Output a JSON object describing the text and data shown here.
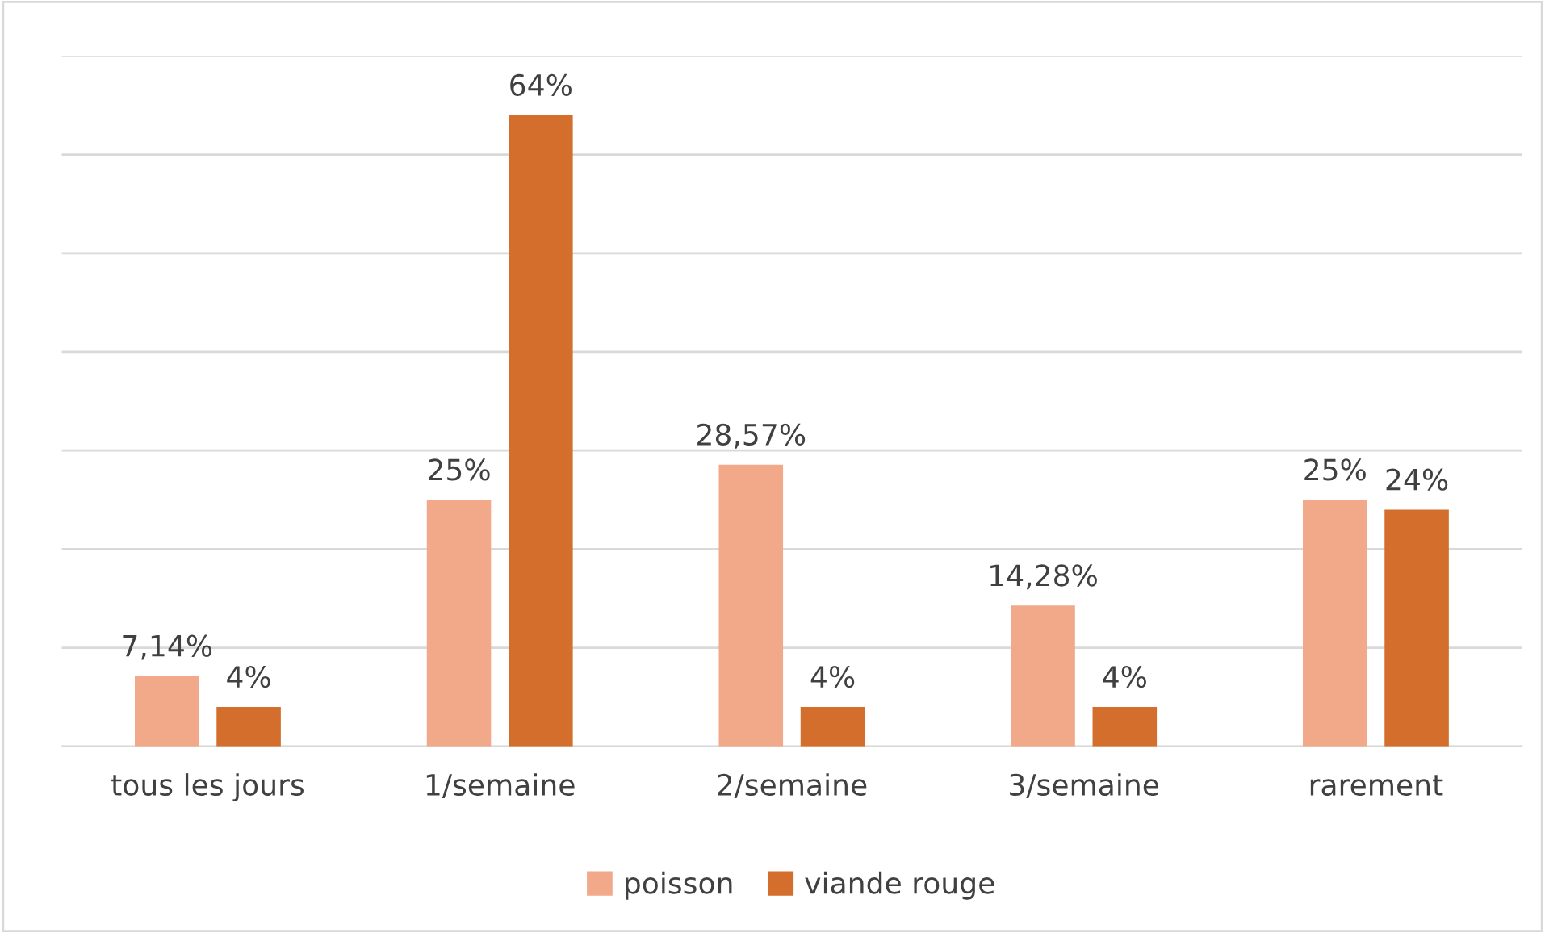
{
  "chart_data": {
    "type": "bar",
    "categories": [
      "tous les jours",
      "1/semaine",
      "2/semaine",
      "3/semaine",
      "rarement"
    ],
    "series": [
      {
        "name": "poisson",
        "color": "#f2a98a",
        "values": [
          7.14,
          25,
          28.57,
          14.28,
          25
        ],
        "value_labels": [
          "7,14%",
          "25%",
          "28,57%",
          "14,28%",
          "25%"
        ]
      },
      {
        "name": "viande rouge",
        "color": "#d46e2c",
        "values": [
          4,
          64,
          4,
          4,
          24
        ],
        "value_labels": [
          "4%",
          "64%",
          "4%",
          "4%",
          "24%"
        ]
      }
    ],
    "ylim": [
      0,
      70
    ],
    "yticks": [
      {
        "value": 0,
        "label": null
      },
      {
        "value": 10,
        "label": null
      },
      {
        "value": 20,
        "label": null
      },
      {
        "value": 30,
        "label": null
      },
      {
        "value": 40,
        "label": null
      },
      {
        "value": 50,
        "label": null
      },
      {
        "value": 60,
        "label": null
      },
      {
        "value": 70,
        "label": null
      }
    ],
    "grid": "y",
    "legend": "bottom",
    "tick_labels": "x"
  }
}
